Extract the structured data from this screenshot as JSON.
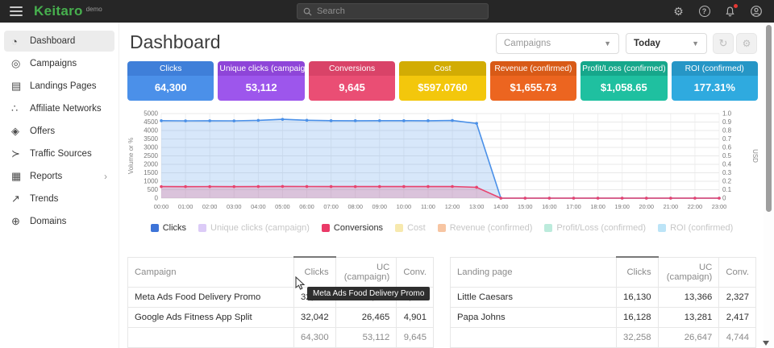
{
  "topbar": {
    "logo": "Keitaro",
    "logo_suffix": "demo",
    "search_placeholder": "Search",
    "icons": [
      "settings-icon",
      "help-icon",
      "notifications-icon",
      "account-icon"
    ]
  },
  "sidebar": {
    "items": [
      {
        "label": "Dashboard",
        "icon": "gauge-icon",
        "active": true
      },
      {
        "label": "Campaigns",
        "icon": "target-icon",
        "active": false
      },
      {
        "label": "Landings Pages",
        "icon": "pages-icon",
        "active": false
      },
      {
        "label": "Affiliate Networks",
        "icon": "people-icon",
        "active": false
      },
      {
        "label": "Offers",
        "icon": "tag-icon",
        "active": false
      },
      {
        "label": "Traffic Sources",
        "icon": "branch-icon",
        "active": false
      },
      {
        "label": "Reports",
        "icon": "report-icon",
        "active": false,
        "has_submenu": true
      },
      {
        "label": "Trends",
        "icon": "trend-icon",
        "active": false
      },
      {
        "label": "Domains",
        "icon": "globe-icon",
        "active": false
      }
    ]
  },
  "header": {
    "title": "Dashboard",
    "campaigns_filter": "Campaigns",
    "range_filter": "Today"
  },
  "metrics": [
    {
      "label": "Clicks",
      "value": "64,300",
      "header_color": "#3F7FD9",
      "body_color": "#4B90E9"
    },
    {
      "label": "Unique clicks (campaign)",
      "value": "53,112",
      "header_color": "#8E45D8",
      "body_color": "#9D56EC"
    },
    {
      "label": "Conversions",
      "value": "9,645",
      "header_color": "#D94368",
      "body_color": "#EA4E74"
    },
    {
      "label": "Cost",
      "value": "$597.0760",
      "header_color": "#D2AC04",
      "body_color": "#F3C70C"
    },
    {
      "label": "Revenue (confirmed)",
      "value": "$1,655.73",
      "header_color": "#D85A17",
      "body_color": "#EC6520"
    },
    {
      "label": "Profit/Loss (confirmed)",
      "value": "$1,058.65",
      "header_color": "#16A78B",
      "body_color": "#1FC0A0"
    },
    {
      "label": "ROI (confirmed)",
      "value": "177.31%",
      "header_color": "#2696C6",
      "body_color": "#2FAADF"
    }
  ],
  "chart_data": {
    "type": "area",
    "x": [
      "00:00",
      "01:00",
      "02:00",
      "03:00",
      "04:00",
      "05:00",
      "06:00",
      "07:00",
      "08:00",
      "09:00",
      "10:00",
      "11:00",
      "12:00",
      "13:00",
      "14:00",
      "15:00",
      "16:00",
      "17:00",
      "18:00",
      "19:00",
      "20:00",
      "21:00",
      "22:00",
      "23:00"
    ],
    "ylabel_left": "Volume or %",
    "ylabel_right": "USD",
    "ylim_left": [
      0,
      5000
    ],
    "ytick_step_left": 500,
    "ylim_right": [
      0,
      1
    ],
    "ytick_step_right": 0.1,
    "grid": true,
    "legend_position": "bottom",
    "series": [
      {
        "name": "Clicks",
        "color": "#4A90E8",
        "fill_opacity": 0.22,
        "values": [
          4580,
          4570,
          4575,
          4572,
          4600,
          4660,
          4605,
          4580,
          4578,
          4582,
          4580,
          4578,
          4590,
          4420,
          0,
          0,
          0,
          0,
          0,
          0,
          0,
          0,
          0,
          0
        ]
      },
      {
        "name": "Conversions",
        "color": "#E8436E",
        "fill_opacity": 0.22,
        "values": [
          685,
          682,
          684,
          683,
          688,
          695,
          690,
          686,
          684,
          687,
          686,
          688,
          690,
          645,
          0,
          0,
          0,
          0,
          0,
          0,
          0,
          0,
          0,
          0
        ]
      }
    ]
  },
  "legend": {
    "items": [
      {
        "label": "Clicks",
        "color": "#3E74D8",
        "active": true
      },
      {
        "label": "Unique clicks (campaign)",
        "color": "#DCCBF7",
        "active": false
      },
      {
        "label": "Conversions",
        "color": "#EA3A68",
        "active": true
      },
      {
        "label": "Cost",
        "color": "#F7E9AE",
        "active": false
      },
      {
        "label": "Revenue (confirmed)",
        "color": "#F7C5A2",
        "active": false
      },
      {
        "label": "Profit/Loss (confirmed)",
        "color": "#BCEBDC",
        "active": false
      },
      {
        "label": "ROI (confirmed)",
        "color": "#BCE4F7",
        "active": false
      }
    ]
  },
  "tables": {
    "campaigns": {
      "columns": [
        "Campaign",
        "Clicks",
        "UC (campaign)",
        "Conv."
      ],
      "sorted_column": "Clicks",
      "rows": [
        [
          "Meta Ads Food Delivery Promo",
          "32,258",
          "26,647",
          "4,744"
        ],
        [
          "Google Ads Fitness App Split",
          "32,042",
          "26,465",
          "4,901"
        ]
      ],
      "totals": [
        "",
        "64,300",
        "53,112",
        "9,645"
      ]
    },
    "landings": {
      "columns": [
        "Landing page",
        "Clicks",
        "UC (campaign)",
        "Conv."
      ],
      "sorted_column": "Clicks",
      "rows": [
        [
          "Little Caesars",
          "16,130",
          "13,366",
          "2,327"
        ],
        [
          "Papa Johns",
          "16,128",
          "13,281",
          "2,417"
        ]
      ],
      "totals": [
        "",
        "32,258",
        "26,647",
        "4,744"
      ]
    }
  },
  "tooltip": {
    "text": "Meta Ads Food Delivery Promo"
  }
}
